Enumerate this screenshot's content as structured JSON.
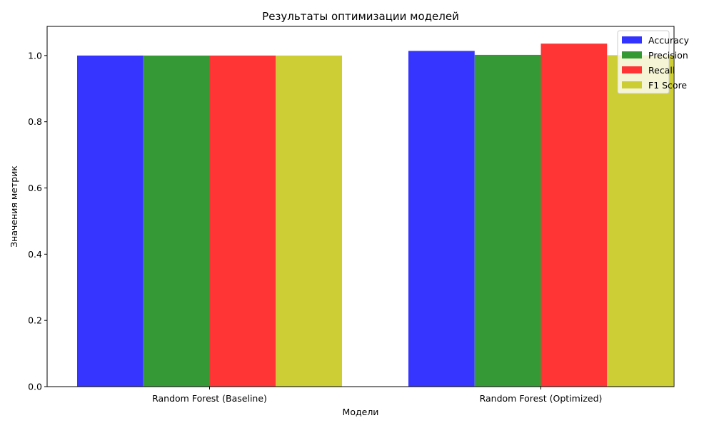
{
  "chart_data": {
    "type": "bar",
    "title": "Результаты оптимизации моделей",
    "xlabel": "Модели",
    "ylabel": "Значения метрик",
    "categories": [
      "Random Forest (Baseline)",
      "Random Forest (Optimized)"
    ],
    "series": [
      {
        "name": "Accuracy",
        "color": "#3333ff",
        "values": [
          1.0,
          1.014
        ]
      },
      {
        "name": "Precision",
        "color": "#339933",
        "values": [
          1.0,
          1.002
        ]
      },
      {
        "name": "Recall",
        "color": "#ff3333",
        "values": [
          1.0,
          1.036
        ]
      },
      {
        "name": "F1 Score",
        "color": "#cccc33",
        "values": [
          1.0,
          1.001
        ]
      }
    ],
    "ylim": [
      0,
      1.088
    ],
    "yticks": [
      "0.0",
      "0.2",
      "0.4",
      "0.6",
      "0.8",
      "1.0"
    ],
    "grid": false,
    "legend_position": "top-right"
  }
}
